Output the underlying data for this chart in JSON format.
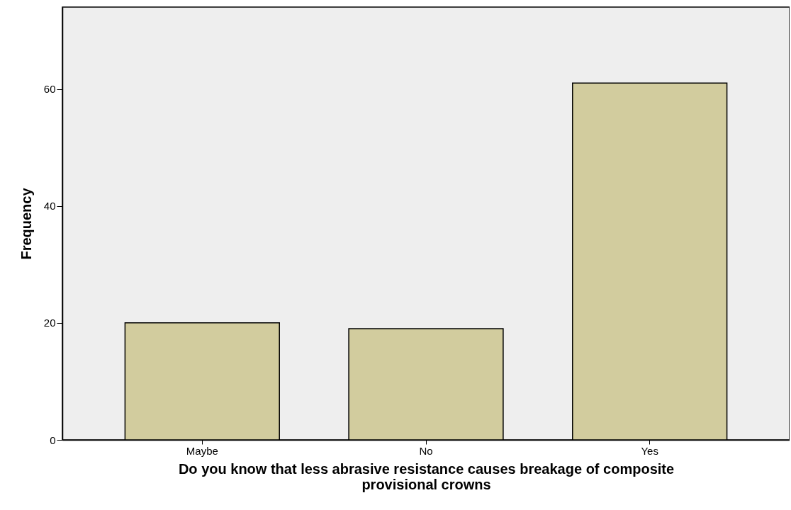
{
  "chart_data": {
    "type": "bar",
    "xlabel": "Do you know that less abrasive resistance causes breakage of composite provisional crowns",
    "ylabel": "Frequency",
    "categories": [
      "Maybe",
      "No",
      "Yes"
    ],
    "values": [
      20,
      19,
      61
    ],
    "color": "#d2cc9e",
    "ylim": [
      0,
      74
    ],
    "yticks": [
      0,
      20,
      40,
      60
    ],
    "grid": false
  }
}
